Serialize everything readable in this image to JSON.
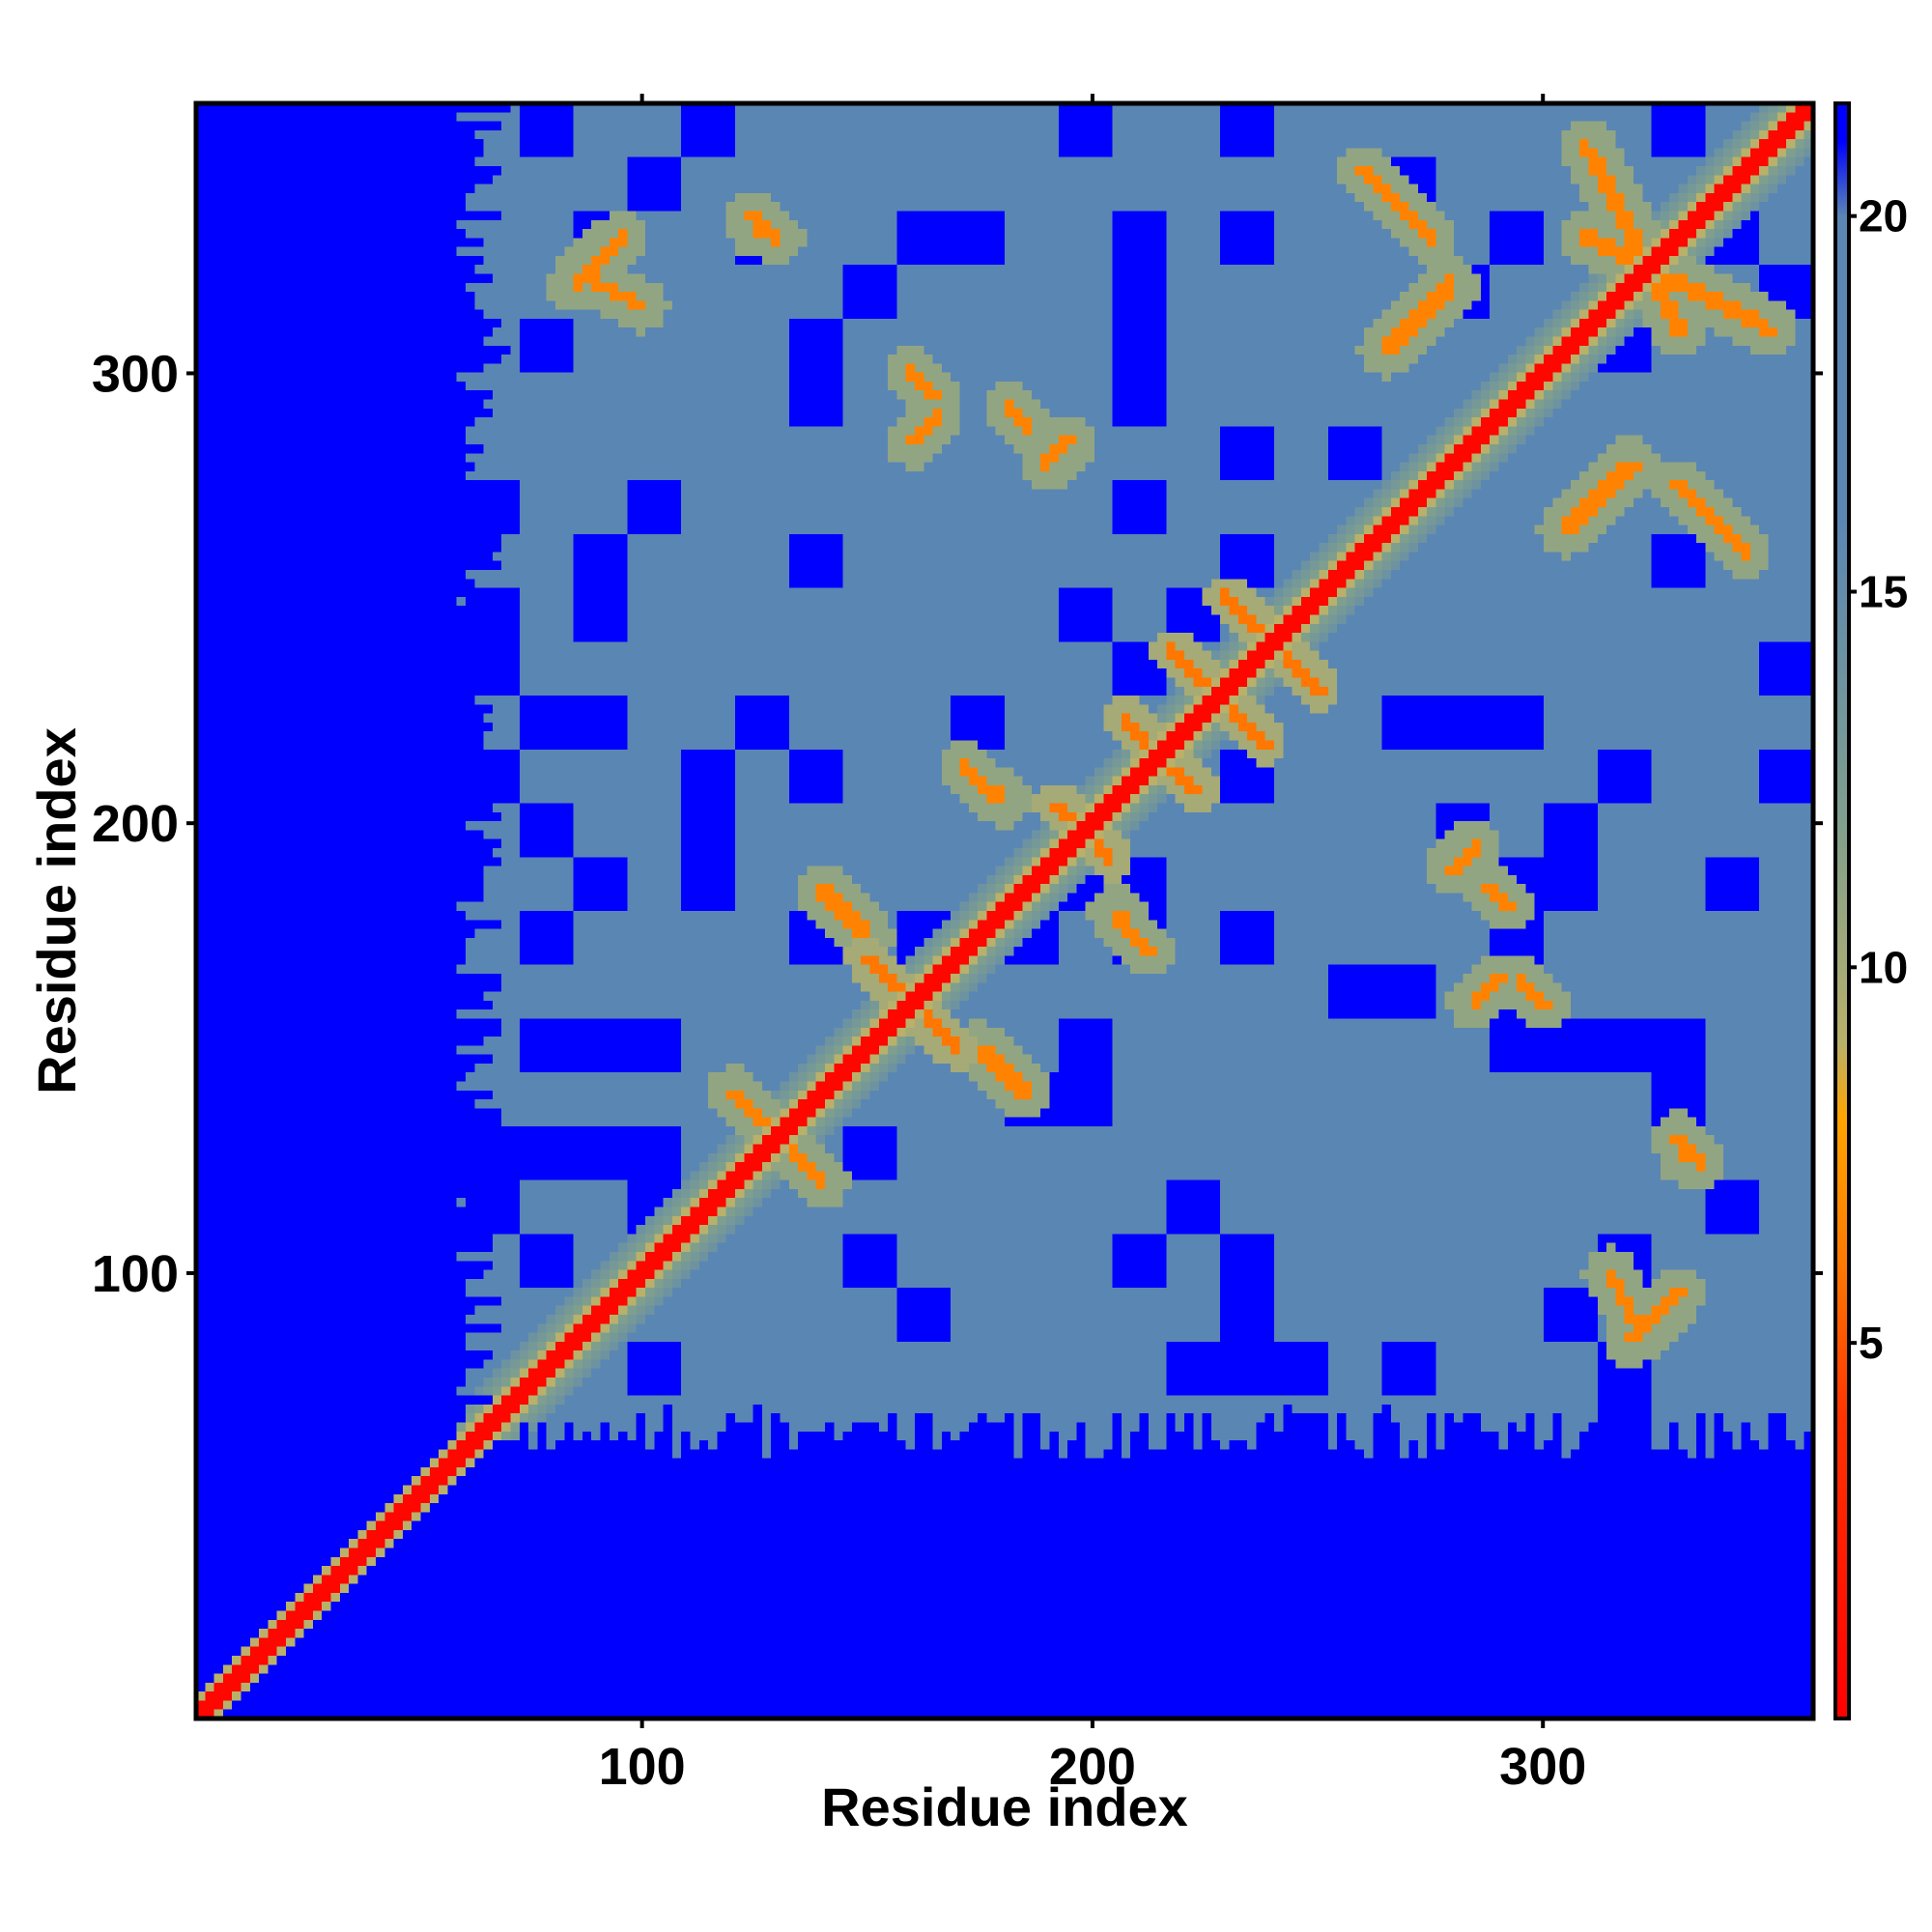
{
  "chart_data": {
    "type": "heatmap",
    "title": "",
    "xlabel": "Residue index",
    "ylabel": "Residue index",
    "xlim": [
      1,
      360
    ],
    "ylim": [
      1,
      360
    ],
    "x_ticks": [
      100,
      200,
      300
    ],
    "y_ticks": [
      100,
      200,
      300
    ],
    "colorbar": {
      "ticks": [
        5,
        10,
        15,
        20
      ],
      "range": [
        0,
        21.5
      ],
      "stops": [
        {
          "value": 0,
          "color": "#ff0000"
        },
        {
          "value": 4,
          "color": "#ff3300"
        },
        {
          "value": 6,
          "color": "#ff7700"
        },
        {
          "value": 8,
          "color": "#ffa500"
        },
        {
          "value": 9,
          "color": "#b8b06a"
        },
        {
          "value": 12,
          "color": "#7f9f8e"
        },
        {
          "value": 16,
          "color": "#5a86b4"
        },
        {
          "value": 20,
          "color": "#5a86b4"
        },
        {
          "value": 21,
          "color": "#0000ff"
        }
      ]
    },
    "colors": {
      "far": "#0000ff",
      "mid": "#5a86b4",
      "near": "#ff0000",
      "contact": "#ff8800",
      "halo": "#b5b46e"
    },
    "description_of_values": "Symmetric residue–residue distance matrix; diagonal distance ~0, far pairs saturate at ~21",
    "features": {
      "diagonal": {
        "from": 1,
        "to": 360
      },
      "folded_domain": {
        "x_start": 70,
        "y_end": 358
      },
      "strand_pairs": [
        {
          "center": [
            240,
            240
          ],
          "half_len": 10
        },
        {
          "center": [
            228,
            228
          ],
          "half_len": 10
        },
        {
          "center": [
            215,
            215
          ],
          "half_len": 8
        },
        {
          "center": [
            160,
            160
          ],
          "half_len": 10
        },
        {
          "center": [
            198,
            198
          ],
          "half_len": 6
        }
      ],
      "contact_arcs": [
        [
          [
            165,
            295
          ],
          [
            160,
            300
          ]
        ],
        [
          [
            190,
            280
          ],
          [
            195,
            285
          ]
        ],
        [
          [
            285,
            160
          ],
          [
            290,
            165
          ]
        ],
        [
          [
            288,
            186
          ],
          [
            292,
            182
          ]
        ],
        [
          [
            315,
            100
          ],
          [
            320,
            90
          ]
        ],
        [
          [
            330,
            130
          ],
          [
            332,
            125
          ]
        ],
        [
          [
            85,
            320
          ],
          [
            95,
            330
          ]
        ],
        [
          [
            125,
            335
          ],
          [
            130,
            330
          ]
        ],
        [
          [
            205,
            180
          ],
          [
            212,
            172
          ]
        ],
        [
          [
            265,
            305
          ],
          [
            280,
            320
          ]
        ],
        [
          [
            310,
            350
          ],
          [
            330,
            310
          ]
        ],
        [
          [
            260,
            345
          ],
          [
            275,
            330
          ]
        ],
        [
          [
            120,
            140
          ],
          [
            140,
            120
          ]
        ],
        [
          [
            140,
            185
          ],
          [
            150,
            175
          ]
        ]
      ]
    }
  }
}
